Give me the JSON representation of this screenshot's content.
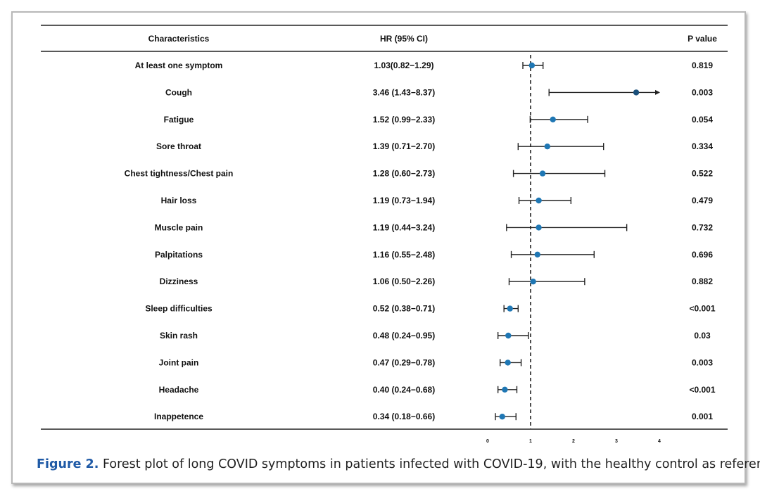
{
  "caption": {
    "label": "Figure 2.",
    "text": "Forest plot of long COVID symptoms in patients infected with COVID-19, with the healthy control as reference."
  },
  "chart_data": {
    "type": "forest",
    "columns": {
      "characteristic": "Characteristics",
      "hr": "HR (95% CI)",
      "p": "P value"
    },
    "reference_line": 1,
    "xlim": [
      0,
      4
    ],
    "xticks": [
      "0",
      "1",
      "2",
      "3",
      "4"
    ],
    "point_color": "#1f77b4",
    "dark_point_color": "#1a4f7a",
    "rows": [
      {
        "label": "At least one symptom",
        "hr_text": "1.03(0.82−1.29)",
        "hr": 1.03,
        "lo": 0.82,
        "hi": 1.29,
        "p": "0.819"
      },
      {
        "label": "Cough",
        "hr_text": "3.46 (1.43−8.37)",
        "hr": 3.46,
        "lo": 1.43,
        "hi": 8.37,
        "p": "0.003"
      },
      {
        "label": "Fatigue",
        "hr_text": "1.52 (0.99−2.33)",
        "hr": 1.52,
        "lo": 0.99,
        "hi": 2.33,
        "p": "0.054"
      },
      {
        "label": "Sore throat",
        "hr_text": "1.39 (0.71−2.70)",
        "hr": 1.39,
        "lo": 0.71,
        "hi": 2.7,
        "p": "0.334"
      },
      {
        "label": "Chest tightness/Chest pain",
        "hr_text": "1.28 (0.60−2.73)",
        "hr": 1.28,
        "lo": 0.6,
        "hi": 2.73,
        "p": "0.522"
      },
      {
        "label": "Hair loss",
        "hr_text": "1.19 (0.73−1.94)",
        "hr": 1.19,
        "lo": 0.73,
        "hi": 1.94,
        "p": "0.479"
      },
      {
        "label": "Muscle pain",
        "hr_text": "1.19 (0.44−3.24)",
        "hr": 1.19,
        "lo": 0.44,
        "hi": 3.24,
        "p": "0.732"
      },
      {
        "label": "Palpitations",
        "hr_text": "1.16 (0.55−2.48)",
        "hr": 1.16,
        "lo": 0.55,
        "hi": 2.48,
        "p": "0.696"
      },
      {
        "label": "Dizziness",
        "hr_text": "1.06 (0.50−2.26)",
        "hr": 1.06,
        "lo": 0.5,
        "hi": 2.26,
        "p": "0.882"
      },
      {
        "label": "Sleep difficulties",
        "hr_text": "0.52 (0.38−0.71)",
        "hr": 0.52,
        "lo": 0.38,
        "hi": 0.71,
        "p": "<0.001"
      },
      {
        "label": "Skin rash",
        "hr_text": "0.48 (0.24−0.95)",
        "hr": 0.48,
        "lo": 0.24,
        "hi": 0.95,
        "p": "0.03"
      },
      {
        "label": "Joint pain",
        "hr_text": "0.47 (0.29−0.78)",
        "hr": 0.47,
        "lo": 0.29,
        "hi": 0.78,
        "p": "0.003"
      },
      {
        "label": "Headache",
        "hr_text": "0.40 (0.24−0.68)",
        "hr": 0.4,
        "lo": 0.24,
        "hi": 0.68,
        "p": "<0.001"
      },
      {
        "label": "Inappetence",
        "hr_text": "0.34 (0.18−0.66)",
        "hr": 0.34,
        "lo": 0.18,
        "hi": 0.66,
        "p": "0.001"
      }
    ]
  }
}
